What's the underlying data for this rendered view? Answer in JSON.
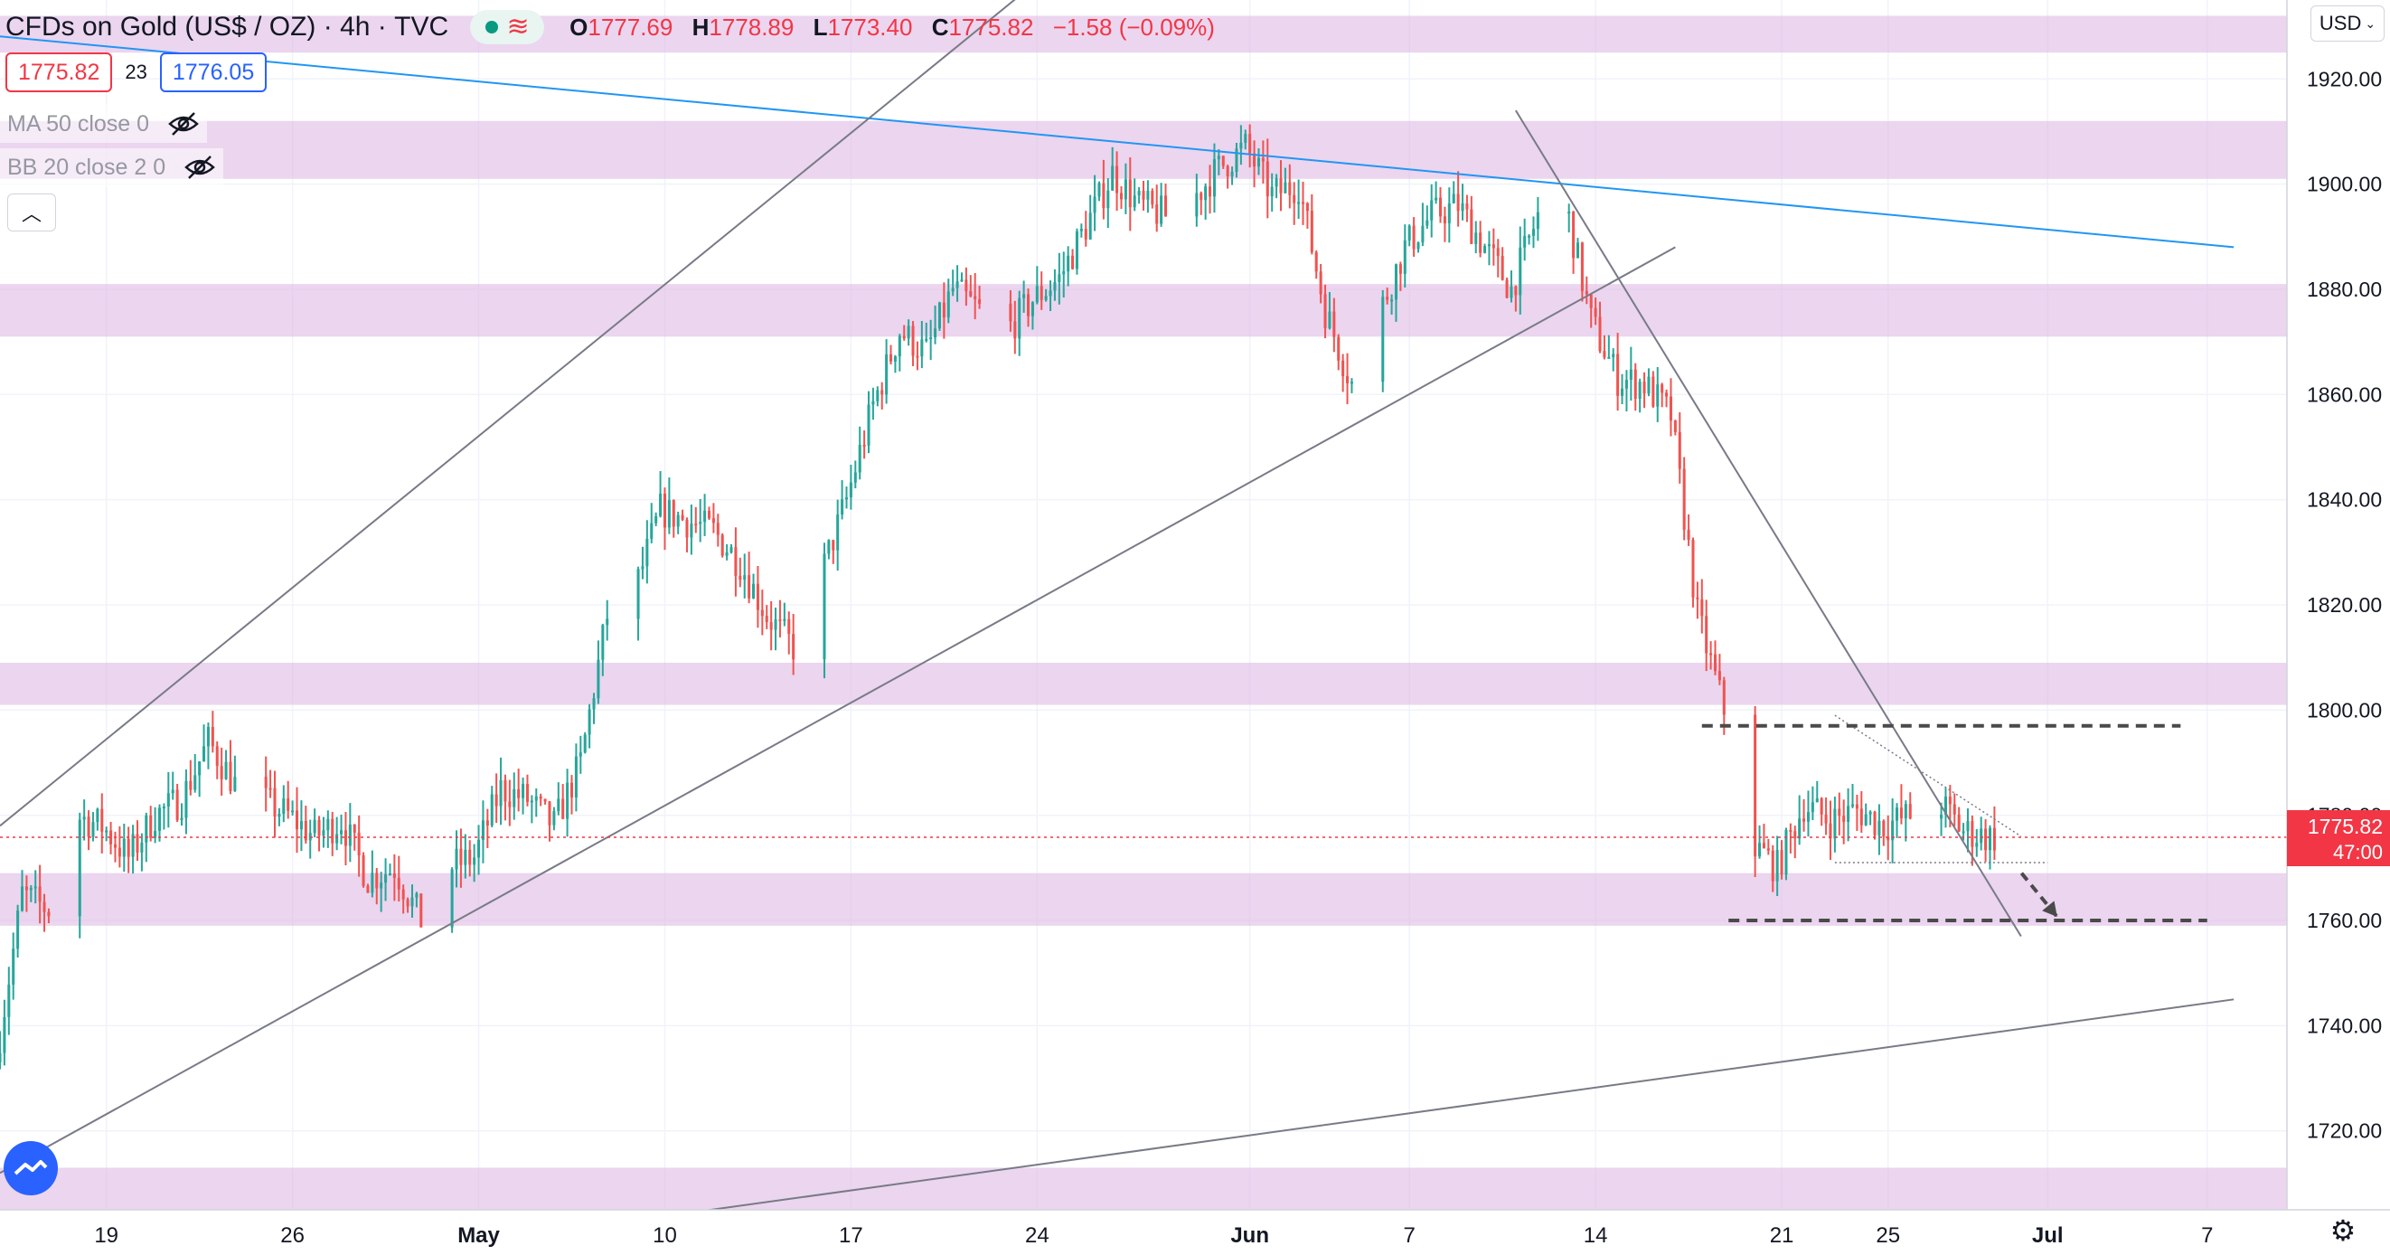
{
  "header": {
    "symbol": "CFDs on Gold (US$ / OZ)",
    "interval": "4h",
    "source": "TVC",
    "ohlc": {
      "o_label": "O",
      "o": "1777.69",
      "h_label": "H",
      "h": "1778.89",
      "l_label": "L",
      "l": "1773.40",
      "c_label": "C",
      "c": "1775.82",
      "change": "−1.58 (−0.09%)"
    }
  },
  "trade": {
    "bid": "1775.82",
    "spread": "23",
    "ask": "1776.05"
  },
  "indicators": [
    {
      "label": "MA 50 close 0",
      "icon": "eye-hidden-icon"
    },
    {
      "label": "BB 20 close 2 0",
      "icon": "eye-hidden-icon"
    }
  ],
  "currency": "USD",
  "colors": {
    "up": "#26a69a",
    "down": "#ef5350",
    "zone": "#e1bee7",
    "trendline_blue": "#2196f3",
    "trendline_gray": "#787b86",
    "price_label": "#f23645"
  },
  "chart_data": {
    "type": "candlestick",
    "instrument": "XAUUSD",
    "timeframe": "4h",
    "y_range": [
      1705,
      1935
    ],
    "x_range": [
      "2021-04-15",
      "2021-07-10"
    ],
    "y_ticks": [
      "1920.00",
      "1900.00",
      "1880.00",
      "1860.00",
      "1840.00",
      "1820.00",
      "1800.00",
      "1780.00",
      "1760.00",
      "1740.00",
      "1720.00"
    ],
    "x_ticks": [
      {
        "label": "19",
        "date": "2021-04-19"
      },
      {
        "label": "26",
        "date": "2021-04-26"
      },
      {
        "label": "May",
        "date": "2021-05-03"
      },
      {
        "label": "10",
        "date": "2021-05-10"
      },
      {
        "label": "17",
        "date": "2021-05-17"
      },
      {
        "label": "24",
        "date": "2021-05-24"
      },
      {
        "label": "Jun",
        "date": "2021-06-01"
      },
      {
        "label": "7",
        "date": "2021-06-07"
      },
      {
        "label": "14",
        "date": "2021-06-14"
      },
      {
        "label": "21",
        "date": "2021-06-21"
      },
      {
        "label": "25",
        "date": "2021-06-25"
      },
      {
        "label": "Jul",
        "date": "2021-07-01"
      },
      {
        "label": "7",
        "date": "2021-07-07"
      }
    ],
    "last_price": {
      "value": "1775.82",
      "countdown": "47:00",
      "y": 1775.82
    },
    "price_path": [
      [
        "2021-04-15",
        1733
      ],
      [
        "2021-04-16",
        1765
      ],
      [
        "2021-04-17",
        1762
      ],
      [
        "2021-04-18",
        1780
      ],
      [
        "2021-04-19",
        1778
      ],
      [
        "2021-04-20",
        1772
      ],
      [
        "2021-04-21",
        1780
      ],
      [
        "2021-04-22",
        1783
      ],
      [
        "2021-04-23",
        1794
      ],
      [
        "2021-04-24",
        1786
      ],
      [
        "2021-04-25",
        1783
      ],
      [
        "2021-04-26",
        1780
      ],
      [
        "2021-04-27",
        1776
      ],
      [
        "2021-04-28",
        1779
      ],
      [
        "2021-04-29",
        1768
      ],
      [
        "2021-04-30",
        1770
      ],
      [
        "2021-05-01",
        1760
      ],
      [
        "2021-05-02",
        1770
      ],
      [
        "2021-05-03",
        1772
      ],
      [
        "2021-05-04",
        1785
      ],
      [
        "2021-05-05",
        1783
      ],
      [
        "2021-05-06",
        1778
      ],
      [
        "2021-05-07",
        1790
      ],
      [
        "2021-05-08",
        1818
      ],
      [
        "2021-05-09",
        1822
      ],
      [
        "2021-05-10",
        1838
      ],
      [
        "2021-05-11",
        1836
      ],
      [
        "2021-05-12",
        1834
      ],
      [
        "2021-05-13",
        1828
      ],
      [
        "2021-05-14",
        1818
      ],
      [
        "2021-05-15",
        1812
      ],
      [
        "2021-05-16",
        1825
      ],
      [
        "2021-05-17",
        1840
      ],
      [
        "2021-05-18",
        1858
      ],
      [
        "2021-05-19",
        1872
      ],
      [
        "2021-05-20",
        1868
      ],
      [
        "2021-05-21",
        1880
      ],
      [
        "2021-05-22",
        1876
      ],
      [
        "2021-05-23",
        1872
      ],
      [
        "2021-05-24",
        1878
      ],
      [
        "2021-05-25",
        1882
      ],
      [
        "2021-05-26",
        1892
      ],
      [
        "2021-05-27",
        1902
      ],
      [
        "2021-05-28",
        1896
      ],
      [
        "2021-05-29",
        1894
      ],
      [
        "2021-05-30",
        1897
      ],
      [
        "2021-05-31",
        1903
      ],
      [
        "2021-06-01",
        1907
      ],
      [
        "2021-06-02",
        1898
      ],
      [
        "2021-06-03",
        1900
      ],
      [
        "2021-06-04",
        1876
      ],
      [
        "2021-06-05",
        1862
      ],
      [
        "2021-06-06",
        1875
      ],
      [
        "2021-06-07",
        1888
      ],
      [
        "2021-06-08",
        1894
      ],
      [
        "2021-06-09",
        1896
      ],
      [
        "2021-06-10",
        1888
      ],
      [
        "2021-06-11",
        1880
      ],
      [
        "2021-06-12",
        1894
      ],
      [
        "2021-06-13",
        1897
      ],
      [
        "2021-06-14",
        1874
      ],
      [
        "2021-06-15",
        1863
      ],
      [
        "2021-06-16",
        1862
      ],
      [
        "2021-06-17",
        1856
      ],
      [
        "2021-06-18",
        1818
      ],
      [
        "2021-06-19",
        1800
      ],
      [
        "2021-06-20",
        1775
      ],
      [
        "2021-06-21",
        1770
      ],
      [
        "2021-06-22",
        1782
      ],
      [
        "2021-06-23",
        1779
      ],
      [
        "2021-06-24",
        1781
      ],
      [
        "2021-06-25",
        1778
      ],
      [
        "2021-06-26",
        1780
      ],
      [
        "2021-06-27",
        1783
      ],
      [
        "2021-06-28",
        1777
      ],
      [
        "2021-06-29",
        1775.82
      ]
    ],
    "zones": [
      [
        1925,
        1932
      ],
      [
        1901,
        1912
      ],
      [
        1871,
        1881
      ],
      [
        1801,
        1809
      ],
      [
        1759,
        1769
      ],
      [
        1705,
        1713
      ]
    ],
    "trendlines": [
      {
        "color": "blue",
        "from": [
          "2021-04-11",
          1930
        ],
        "to": [
          "2021-07-08",
          1888
        ]
      },
      {
        "color": "gray",
        "from": [
          "2021-04-15",
          1778
        ],
        "to": [
          "2021-05-28",
          1955
        ]
      },
      {
        "color": "gray",
        "from": [
          "2021-04-15",
          1712
        ],
        "to": [
          "2021-06-17",
          1888
        ]
      },
      {
        "color": "gray",
        "from": [
          "2021-06-11",
          1914
        ],
        "to": [
          "2021-06-30",
          1757
        ]
      },
      {
        "color": "gray",
        "from": [
          "2021-05-06",
          1701
        ],
        "to": [
          "2021-07-08",
          1745
        ]
      },
      {
        "color": "gray",
        "style": "dotted",
        "from": [
          "2021-06-23",
          1799
        ],
        "to": [
          "2021-06-30",
          1776
        ]
      },
      {
        "color": "gray",
        "style": "dotted",
        "from": [
          "2021-06-23",
          1771
        ],
        "to": [
          "2021-07-01",
          1771
        ]
      }
    ],
    "levels": [
      {
        "style": "dashed",
        "y": 1797,
        "from": "2021-06-18",
        "to": "2021-07-06"
      },
      {
        "style": "dashed",
        "y": 1760,
        "from": "2021-06-19",
        "to": "2021-07-07"
      }
    ],
    "projection_arrow": {
      "from": [
        "2021-06-29",
        1769
      ],
      "to": [
        "2021-06-30",
        1760
      ]
    }
  }
}
